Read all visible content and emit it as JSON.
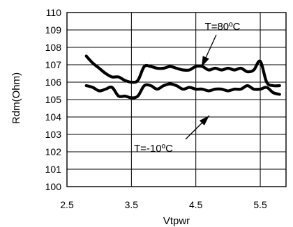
{
  "chart_data": {
    "type": "line",
    "title": "",
    "xlabel": "Vtpwr",
    "ylabel": "Rdm(Ohm)",
    "xlim": [
      2.5,
      5.9
    ],
    "ylim": [
      100,
      110
    ],
    "xticks": [
      2.5,
      3.5,
      4.5,
      5.5
    ],
    "xtick_labels": [
      "2.5",
      "3.5",
      "4.5",
      "5.5"
    ],
    "yticks": [
      100,
      101,
      102,
      103,
      104,
      105,
      106,
      107,
      108,
      109,
      110
    ],
    "ytick_labels": [
      "100",
      "101",
      "102",
      "103",
      "104",
      "105",
      "106",
      "107",
      "108",
      "109",
      "110"
    ],
    "grid": true,
    "legend": "none",
    "series": [
      {
        "name": "T=80ºC",
        "x": [
          2.8,
          2.9,
          3.0,
          3.1,
          3.2,
          3.3,
          3.4,
          3.5,
          3.6,
          3.7,
          3.8,
          3.9,
          4.0,
          4.1,
          4.2,
          4.3,
          4.4,
          4.5,
          4.6,
          4.7,
          4.8,
          4.9,
          5.0,
          5.1,
          5.2,
          5.3,
          5.4,
          5.5,
          5.6,
          5.7,
          5.8
        ],
        "values": [
          107.5,
          107.1,
          106.8,
          106.5,
          106.3,
          106.3,
          106.1,
          106.0,
          106.1,
          106.9,
          106.9,
          106.8,
          106.8,
          106.9,
          106.8,
          106.7,
          106.7,
          106.9,
          106.9,
          106.7,
          106.8,
          106.7,
          106.8,
          106.7,
          106.8,
          106.6,
          106.7,
          107.2,
          106.0,
          105.8,
          105.8
        ]
      },
      {
        "name": "T=-10ºC",
        "x": [
          2.8,
          2.9,
          3.0,
          3.1,
          3.2,
          3.3,
          3.4,
          3.5,
          3.6,
          3.7,
          3.8,
          3.9,
          4.0,
          4.1,
          4.2,
          4.3,
          4.4,
          4.5,
          4.6,
          4.7,
          4.8,
          4.9,
          5.0,
          5.1,
          5.2,
          5.3,
          5.4,
          5.5,
          5.6,
          5.7,
          5.8
        ],
        "values": [
          105.8,
          105.7,
          105.5,
          105.6,
          105.7,
          105.2,
          105.2,
          105.1,
          105.2,
          105.8,
          105.8,
          105.6,
          105.8,
          105.9,
          105.8,
          105.6,
          105.7,
          105.6,
          105.6,
          105.5,
          105.6,
          105.6,
          105.5,
          105.6,
          105.6,
          105.8,
          105.6,
          105.6,
          105.7,
          105.4,
          105.3
        ]
      }
    ],
    "annotations": [
      {
        "text": "T=80ºC",
        "points_to_series": 0
      },
      {
        "text": "T=-10ºC",
        "points_to_series": 1
      }
    ],
    "line_color": "#000000"
  }
}
